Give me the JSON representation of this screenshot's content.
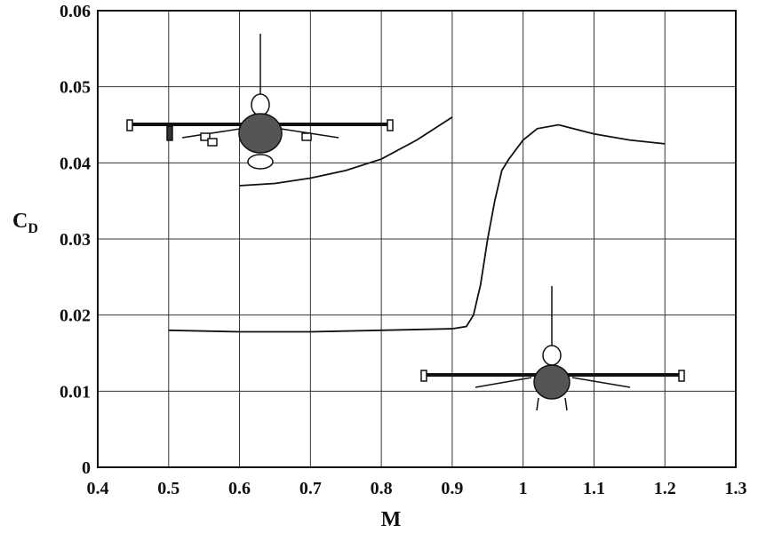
{
  "chart_data": {
    "type": "line",
    "xlabel": "M",
    "ylabel": "C",
    "ylabel_subscript": "D",
    "xlim": [
      0.4,
      1.3
    ],
    "xticks": [
      0.4,
      0.5,
      0.6,
      0.7,
      0.8,
      0.9,
      1,
      1.1,
      1.2,
      1.3
    ],
    "ylim": [
      0,
      0.06
    ],
    "yticks": [
      0,
      0.01,
      0.02,
      0.03,
      0.04,
      0.05,
      0.06
    ],
    "grid": true,
    "series": [
      {
        "color": "#111111",
        "x": [
          0.6,
          0.65,
          0.7,
          0.75,
          0.8,
          0.85,
          0.9
        ],
        "values": [
          0.037,
          0.0373,
          0.038,
          0.039,
          0.0405,
          0.043,
          0.046
        ]
      },
      {
        "color": "#111111",
        "x": [
          0.5,
          0.6,
          0.7,
          0.8,
          0.9,
          0.92,
          0.93,
          0.94,
          0.95,
          0.96,
          0.97,
          0.98,
          1.0,
          1.02,
          1.05,
          1.1,
          1.15,
          1.2
        ],
        "values": [
          0.018,
          0.0178,
          0.0178,
          0.018,
          0.0182,
          0.0185,
          0.02,
          0.024,
          0.03,
          0.035,
          0.039,
          0.0405,
          0.043,
          0.0445,
          0.045,
          0.0438,
          0.043,
          0.0425
        ]
      }
    ]
  }
}
